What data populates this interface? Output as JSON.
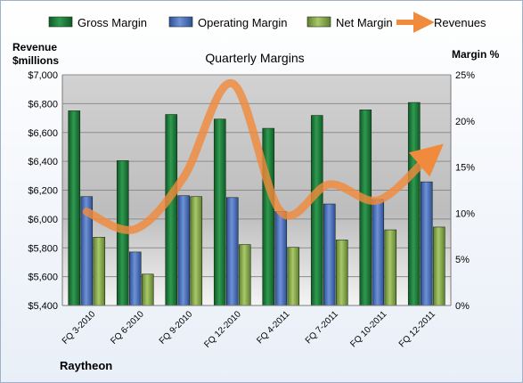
{
  "chart_data": {
    "type": "bar",
    "title": "Quarterly Margins",
    "company": "Raytheon",
    "ylabel_left_line1": "Revenue",
    "ylabel_left_line2": "$millions",
    "ylabel_right": "Margin %",
    "categories": [
      "FQ 3-2010",
      "FQ 6-2010",
      "FQ 9-2010",
      "FQ 12-2010",
      "FQ 4-2011",
      "FQ 7-2011",
      "FQ 10-2011",
      "FQ 12-2011"
    ],
    "series": [
      {
        "name": "Gross Margin",
        "axis": "right",
        "values": [
          21.1,
          15.7,
          20.7,
          20.2,
          19.2,
          20.6,
          21.2,
          22.0
        ],
        "color": "#1f7a3a"
      },
      {
        "name": "Operating Margin",
        "axis": "right",
        "values": [
          11.8,
          5.8,
          11.9,
          11.7,
          10.2,
          11.0,
          11.5,
          13.4
        ],
        "color": "#4a6fb8"
      },
      {
        "name": "Net Margin",
        "axis": "right",
        "values": [
          7.4,
          3.4,
          11.8,
          6.6,
          6.3,
          7.1,
          8.2,
          8.5
        ],
        "color": "#8aab50"
      },
      {
        "name": "Revenues",
        "axis": "left",
        "type": "line",
        "values": [
          6050,
          5930,
          6290,
          6940,
          6050,
          6240,
          6130,
          6420
        ],
        "color": "#f08a3c"
      }
    ],
    "y_left": {
      "min": 5400,
      "max": 7000,
      "ticks": [
        "$5,400",
        "$5,600",
        "$5,800",
        "$6,000",
        "$6,200",
        "$6,400",
        "$6,600",
        "$6,800",
        "$7,000"
      ]
    },
    "y_right": {
      "min": 0,
      "max": 25,
      "ticks": [
        "0%",
        "5%",
        "10%",
        "15%",
        "20%",
        "25%"
      ]
    },
    "grid": true,
    "legend_position": "top"
  }
}
